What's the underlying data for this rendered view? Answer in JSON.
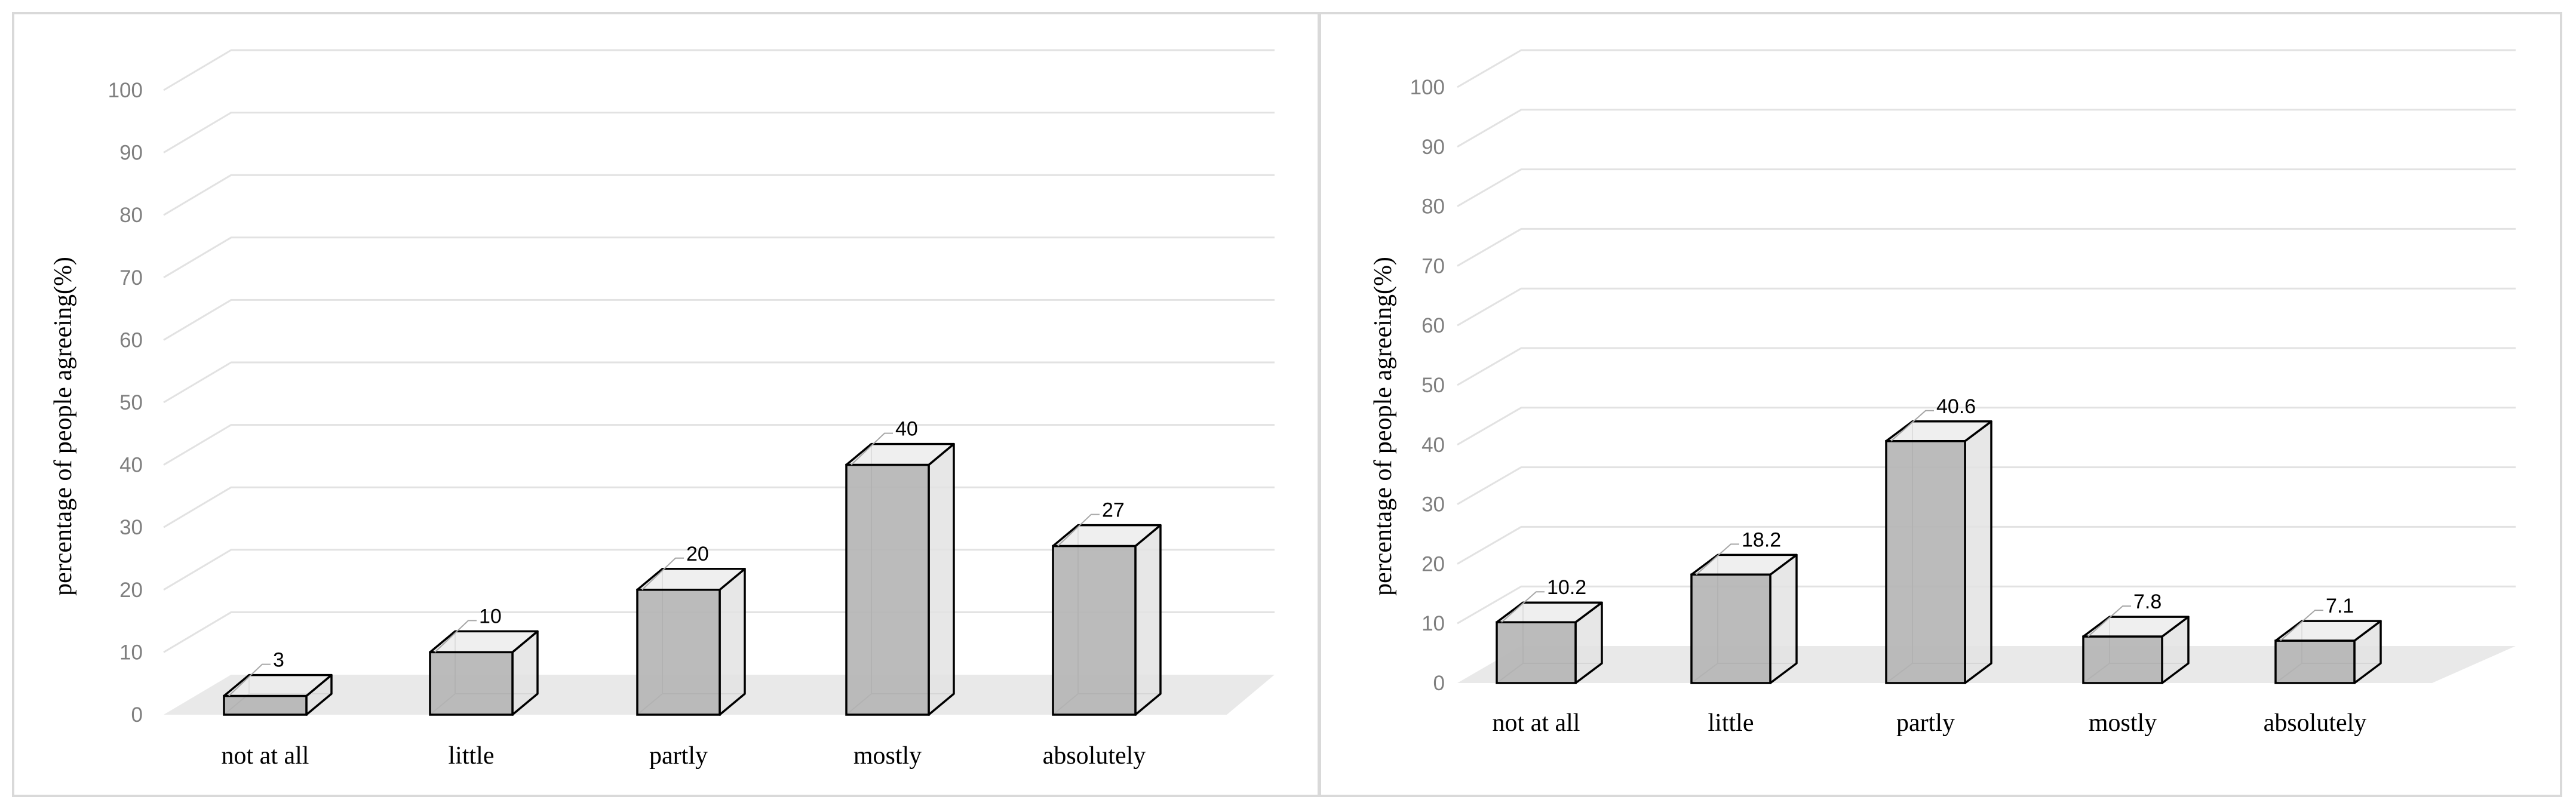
{
  "colors": {
    "bar_front": "#b5b5b5",
    "bar_side": "#e3e3e3",
    "bar_top": "#ececec",
    "bar_stroke": "#000000",
    "floor": "#e9e9e9",
    "grid": "#e2e2e2",
    "tick_text": "#7f7f7f",
    "border": "#d9d9d9"
  },
  "chart_data": [
    {
      "type": "bar",
      "style": "3d",
      "title": "",
      "xlabel": "",
      "ylabel": "percentage of people agreeing(%)",
      "ylim": [
        0,
        100
      ],
      "yticks": [
        "0",
        "10",
        "20",
        "30",
        "40",
        "50",
        "60",
        "70",
        "80",
        "90",
        "100"
      ],
      "categories": [
        "not at all",
        "little",
        "partly",
        "mostly",
        "absolutely"
      ],
      "values": [
        3,
        10,
        20,
        40,
        27
      ],
      "data_labels": [
        "3",
        "10",
        "20",
        "40",
        "27"
      ],
      "grid": true
    },
    {
      "type": "bar",
      "style": "3d",
      "title": "",
      "xlabel": "",
      "ylabel": "percentage of people agreeing(%)",
      "ylim": [
        0,
        100
      ],
      "yticks": [
        "0",
        "10",
        "20",
        "30",
        "40",
        "50",
        "60",
        "70",
        "80",
        "90",
        "100"
      ],
      "categories": [
        "not at all",
        "little",
        "partly",
        "mostly",
        "absolutely"
      ],
      "values": [
        10.2,
        18.2,
        40.6,
        7.8,
        7.1
      ],
      "data_labels": [
        "10.2",
        "18.2",
        "40.6",
        "7.8",
        "7.1"
      ],
      "grid": true
    }
  ]
}
